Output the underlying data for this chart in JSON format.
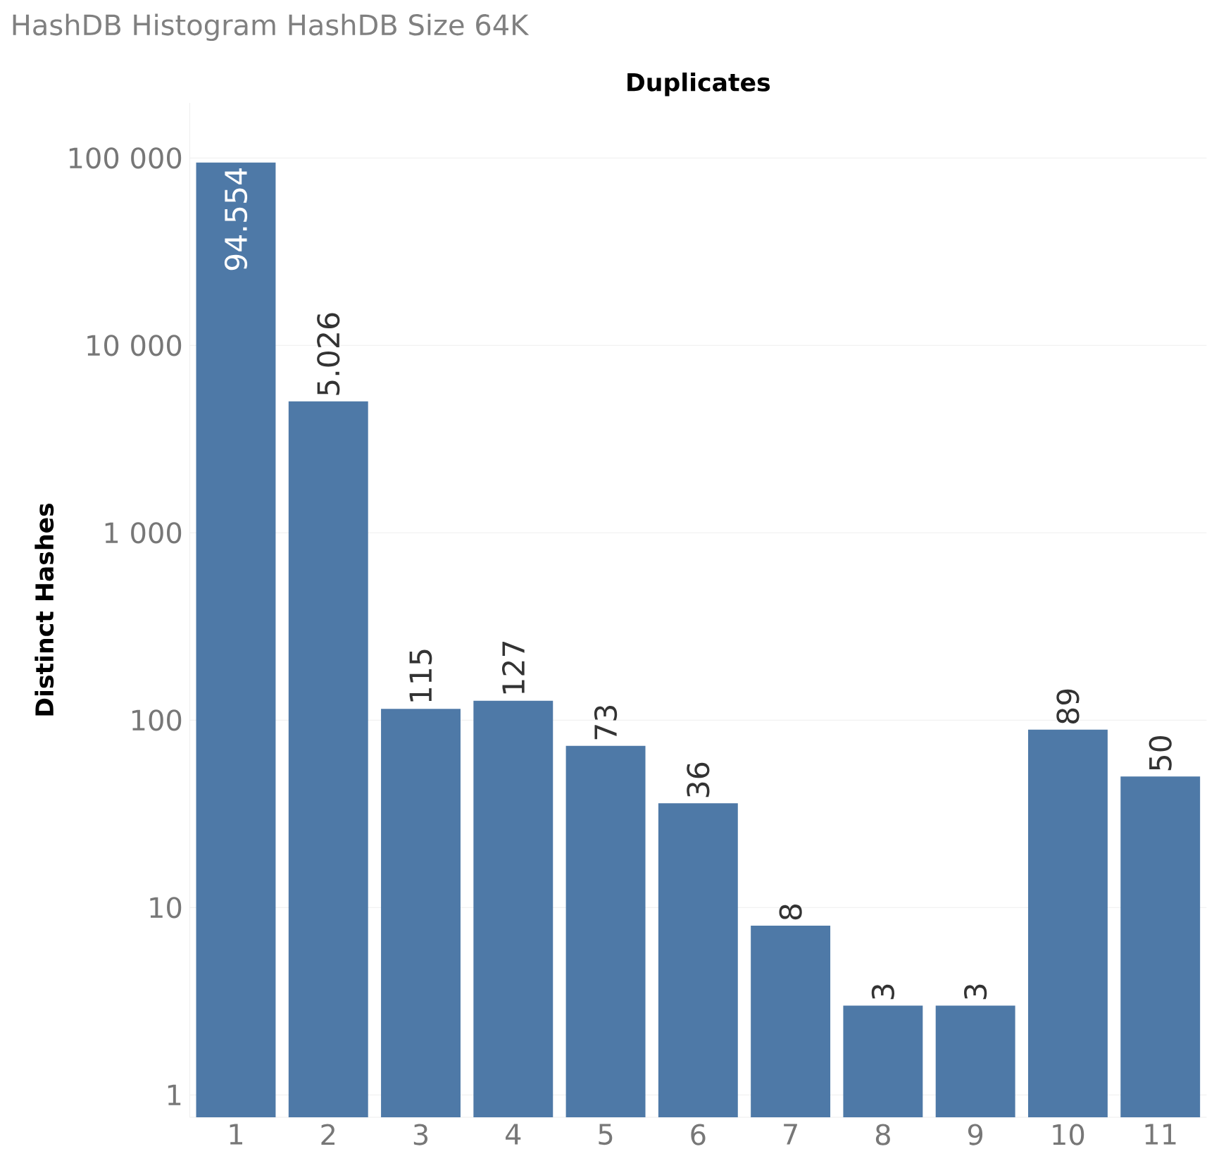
{
  "chart_data": {
    "type": "bar",
    "title": "HashDB Histogram HashDB Size 64K",
    "xlabel": "Duplicates",
    "ylabel": "Distinct Hashes",
    "categories": [
      "1",
      "2",
      "3",
      "4",
      "5",
      "6",
      "7",
      "8",
      "9",
      "10",
      "11"
    ],
    "values": [
      94554,
      5026,
      115,
      127,
      73,
      36,
      8,
      3,
      3,
      89,
      50
    ],
    "value_labels": [
      "94.554",
      "5.026",
      "115",
      "127",
      "73",
      "36",
      "8",
      "3",
      "3",
      "89",
      "50"
    ],
    "color": "#4e79a7",
    "log": "y",
    "grid": "y",
    "ylim": [
      0.76,
      197000
    ],
    "yticks": [
      {
        "value": 1,
        "label": "1"
      },
      {
        "value": 10,
        "label": "10"
      },
      {
        "value": 100,
        "label": "100"
      },
      {
        "value": 1000,
        "label": "1 000"
      },
      {
        "value": 10000,
        "label": "10 000"
      },
      {
        "value": 100000,
        "label": "100 000"
      }
    ]
  }
}
